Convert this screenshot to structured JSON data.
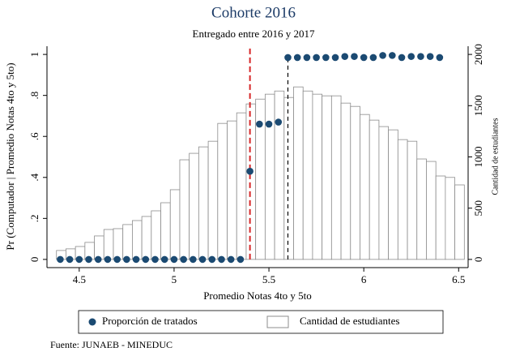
{
  "chart_data": {
    "type": "combo",
    "title": "Cohorte 2016",
    "subtitle": "Entregado entre 2016 y 2017",
    "xlabel": "Promedio Notas 4to y 5to",
    "ylabel": "Pr (Computador | Promedio Notas 4to y 5to)",
    "y2label": "Cantidad de estudiantes",
    "source": "Fuente: JUNAEB - MINEDUC",
    "xlim": [
      4.33,
      6.55
    ],
    "xticks": [
      4.5,
      5,
      5.5,
      6,
      6.5
    ],
    "ylim": [
      -0.04,
      1.04
    ],
    "yticks": [
      0,
      {
        "value": 0.2,
        "label": ".2"
      },
      {
        "value": 0.4,
        "label": ".4"
      },
      {
        "value": 0.6,
        "label": ".6"
      },
      {
        "value": 0.8,
        "label": ".8"
      },
      1
    ],
    "y2lim": [
      -80,
      2080
    ],
    "y2ticks": [
      0,
      500,
      1000,
      1500,
      2000
    ],
    "histogram": {
      "name": "Cantidad de estudiantes",
      "axis": "y2",
      "color": "#ffffff",
      "edgecolor": "#8c8c8c",
      "bins": [
        4.38,
        4.43,
        4.48,
        4.53,
        4.58,
        4.63,
        4.68,
        4.73,
        4.78,
        4.83,
        4.88,
        4.93,
        4.98,
        5.03,
        5.08,
        5.13,
        5.18,
        5.23,
        5.28,
        5.33,
        5.38,
        5.43,
        5.48,
        5.53,
        5.58,
        5.63,
        5.68,
        5.73,
        5.78,
        5.83,
        5.88,
        5.93,
        5.98,
        6.03,
        6.08,
        6.13,
        6.18,
        6.23,
        6.28,
        6.33,
        6.38,
        6.43,
        6.48,
        6.53
      ],
      "counts": [
        87,
        103,
        126,
        166,
        229,
        292,
        300,
        340,
        379,
        419,
        474,
        553,
        680,
        972,
        1035,
        1098,
        1153,
        1327,
        1351,
        1430,
        1517,
        1564,
        1612,
        1643,
        1580,
        1683,
        1643,
        1612,
        1596,
        1596,
        1525,
        1493,
        1414,
        1359,
        1296,
        1264,
        1169,
        1153,
        980,
        956,
        814,
        800,
        727
      ]
    },
    "scatter": {
      "name": "Proporción de tratados",
      "color": "#1b4a72",
      "x": [
        4.4,
        4.45,
        4.5,
        4.55,
        4.6,
        4.65,
        4.7,
        4.75,
        4.8,
        4.85,
        4.9,
        4.95,
        5.0,
        5.05,
        5.1,
        5.15,
        5.2,
        5.25,
        5.3,
        5.35,
        5.4,
        5.45,
        5.5,
        5.55,
        5.6,
        5.65,
        5.7,
        5.75,
        5.8,
        5.85,
        5.9,
        5.95,
        6.0,
        6.05,
        6.1,
        6.15,
        6.2,
        6.25,
        6.3,
        6.35,
        6.4
      ],
      "values": [
        0,
        0,
        0,
        0,
        0,
        0,
        0,
        0,
        0,
        0,
        0,
        0,
        0,
        0,
        0,
        0,
        0,
        0,
        0,
        0,
        0.43,
        0.66,
        0.66,
        0.67,
        0.985,
        0.985,
        0.985,
        0.985,
        0.985,
        0.985,
        0.99,
        0.99,
        0.985,
        0.985,
        0.995,
        0.995,
        0.985,
        0.99,
        0.99,
        0.99,
        0.985
      ]
    },
    "vlines": [
      {
        "x": 5.4,
        "color": "#d62728",
        "ymax": 1.04
      },
      {
        "x": 5.6,
        "color": "#000000",
        "ymax": 0.98
      }
    ]
  }
}
